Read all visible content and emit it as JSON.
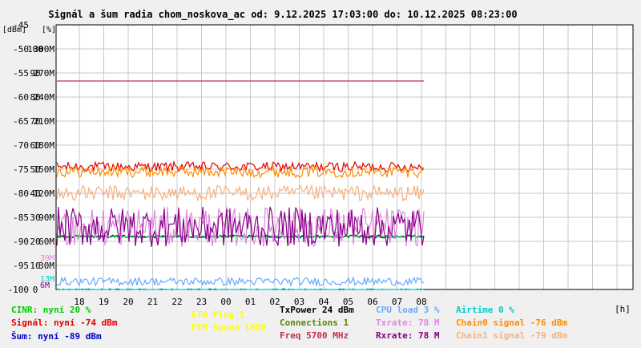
{
  "chart_data": {
    "type": "line",
    "title": "Signál a šum radia chom_noskova_ac od: 9.12.2025 17:03:00 do: 10.12.2025 08:23:00",
    "xlabel": "[h]",
    "x_ticks": [
      "18",
      "19",
      "20",
      "21",
      "22",
      "23",
      "00",
      "01",
      "02",
      "03",
      "04",
      "05",
      "06",
      "07",
      "08"
    ],
    "y_axes": {
      "dbm": {
        "label": "[dBm]",
        "range": [
          -100,
          -45
        ],
        "ticks": [
          "-45",
          "-50",
          "-55",
          "-60",
          "-65",
          "-70",
          "-75",
          "-80",
          "-85",
          "-90",
          "-95",
          "-100"
        ]
      },
      "percent": {
        "label": "[%]",
        "range": [
          0,
          100
        ],
        "ticks": [
          "100",
          "90",
          "80",
          "70",
          "60",
          "50",
          "40",
          "30",
          "20",
          "10",
          "0"
        ]
      },
      "rate": {
        "ticks": [
          "300M",
          "270M",
          "240M",
          "210M",
          "180M",
          "150M",
          "120M",
          "90M",
          "60M",
          "30M"
        ]
      }
    },
    "grid": true,
    "series": [
      {
        "name": "Signál",
        "color": "#e00000",
        "y": -74.5,
        "noise": 1.0,
        "axis": "dbm"
      },
      {
        "name": "Chain0 signal",
        "color": "#ff8c00",
        "y": -75.5,
        "noise": 1.2,
        "axis": "dbm"
      },
      {
        "name": "Chain1 signal",
        "color": "#f4b183",
        "y": -80,
        "noise": 1.6,
        "axis": "dbm"
      },
      {
        "name": "Šum",
        "color": "#0000cc",
        "y": -89,
        "noise": 0.3,
        "axis": "dbm"
      },
      {
        "name": "CINR",
        "color": "#00cc00",
        "y": 20,
        "noise": 0.3,
        "axis": "percent"
      },
      {
        "name": "Txrate",
        "color": "#dd88dd",
        "y": 78,
        "noise": 25,
        "axis": "rate"
      },
      {
        "name": "Rxrate",
        "color": "#880088",
        "y": 78,
        "noise": 25,
        "axis": "rate"
      },
      {
        "name": "CPU load",
        "color": "#66aaff",
        "y": 3,
        "noise": 1.5,
        "axis": "percent"
      },
      {
        "name": "Airtime",
        "color": "#00cccc",
        "y": 0,
        "noise": 0.3,
        "axis": "percent"
      },
      {
        "name": "Freq",
        "color": "#c03050",
        "y": 5700,
        "noise": 0,
        "axis": "freq"
      }
    ]
  },
  "legend": {
    "cinr": "CINR: nyní 20 %",
    "signal": "Signál: nyní -74 dBm",
    "noise": "Šum: nyní -89 dBm",
    "eth_plug": "ETH Plug 1",
    "eth_speed": "ETH Speed 1000",
    "txpower": "TxPower 24 dBm",
    "connections": "Connections 1",
    "freq": "Freq 5700 MHz",
    "cpu": "CPU load 3 %",
    "txrate": "Txrate: 78 M",
    "rxrate": "Rxrate: 78 M",
    "airtime": "Airtime 0 %",
    "chain0": "Chain0 signal -76 dBm",
    "chain1": "Chain1 signal -79 dBm",
    "left_labels": [
      "39M",
      "13M",
      "6M"
    ]
  },
  "colors": {
    "signal": "#e00000",
    "chain0": "#ff8c00",
    "chain1": "#f4b183",
    "noise": "#0000cc",
    "cinr": "#00cc00",
    "txrate": "#dd88dd",
    "rxrate": "#880088",
    "cpu": "#66aaff",
    "airtime": "#00cccc",
    "freq": "#c03050",
    "eth": "#ffff00",
    "txpower": "#000000",
    "connections": "#558800"
  }
}
